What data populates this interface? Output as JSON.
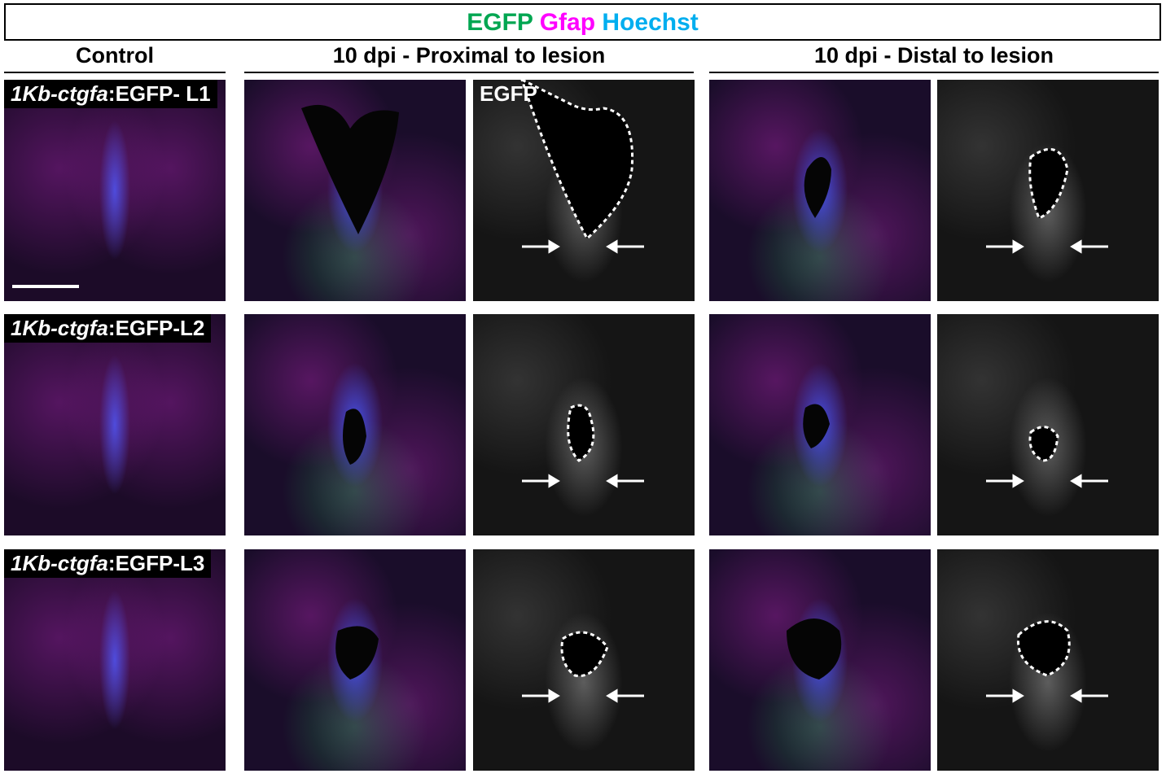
{
  "legend": {
    "egfp": "EGFP",
    "gfap": "Gfap",
    "hoechst": "Hoechst",
    "colors": {
      "egfp": "#00a651",
      "gfap": "#ff00ff",
      "hoechst": "#00aeef"
    }
  },
  "columns": {
    "control": "Control",
    "proximal": "10 dpi - Proximal to lesion",
    "distal": "10 dpi - Distal to lesion"
  },
  "rows": [
    {
      "line_italic": "1Kb-ctgfa",
      "line_suffix": ":EGFP- L1"
    },
    {
      "line_italic": "1Kb-ctgfa",
      "line_suffix": ":EGFP-L2"
    },
    {
      "line_italic": "1Kb-ctgfa",
      "line_suffix": ":EGFP-L3"
    }
  ],
  "channel_label": "EGFP"
}
